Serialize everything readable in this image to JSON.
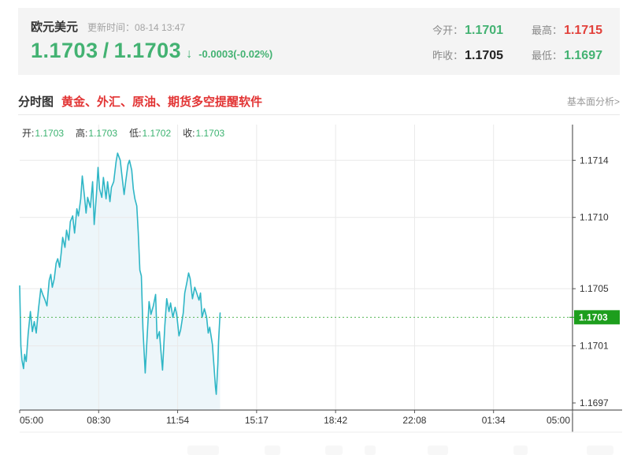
{
  "header": {
    "pair_name": "欧元美元",
    "update_text": "更新时间：08-14 13:47",
    "bid": "1.1703",
    "slash": "/",
    "ask": "1.1703",
    "arrow": "↓",
    "change": "-0.0003(-0.02%)",
    "stats": [
      {
        "label": "今开：",
        "value": "1.1701",
        "color": "green"
      },
      {
        "label": "最高：",
        "value": "1.1715",
        "color": "red"
      },
      {
        "label": "昨收：",
        "value": "1.1705",
        "color": "black"
      },
      {
        "label": "最低：",
        "value": "1.1697",
        "color": "green"
      }
    ]
  },
  "tabs": {
    "active_tab": "分时图",
    "promo_text": "黄金、外汇、原油、期货多空提醒软件",
    "analysis_link": "基本面分析>"
  },
  "ohlc": {
    "open_label": "开:",
    "open": "1.1703",
    "high_label": "高:",
    "high": "1.1703",
    "low_label": "低:",
    "low": "1.1702",
    "close_label": "收:",
    "close": "1.1703"
  },
  "chart_data": {
    "type": "line",
    "instrument": "欧元美元",
    "x_tick_labels": [
      "05:00",
      "08:30",
      "11:54",
      "15:17",
      "18:42",
      "22:08",
      "01:34",
      "05:00"
    ],
    "x_range_minutes": [
      0,
      1440
    ],
    "y_axis_range": [
      1.16965,
      1.17165
    ],
    "y_ticks": [
      {
        "label": "1.1714",
        "value": 1.1714,
        "grid": true
      },
      {
        "label": "1.1710",
        "value": 1.171,
        "grid": true
      },
      {
        "label": "1.1705",
        "value": 1.1705,
        "grid": true
      },
      {
        "label": "1.1701",
        "value": 1.1701,
        "grid": true
      },
      {
        "label": "1.1697",
        "value": 1.1697,
        "grid": false
      }
    ],
    "current_price": 1.1703,
    "current_price_label": "1.1703",
    "colors": {
      "line": "#2fb6c6",
      "fill": "#edf6fa",
      "grid": "#e9e9e9",
      "axis": "#3a3a3a",
      "tick": "#555555",
      "label": "#333333",
      "current_line": "#57b757",
      "current_box": "#1d9e1d",
      "current_text": "#ffffff",
      "bottom_border": "#ececec"
    },
    "series": [
      {
        "name": "price",
        "points": [
          [
            0,
            1.17052
          ],
          [
            3,
            1.1701
          ],
          [
            6,
            1.17
          ],
          [
            10,
            1.16994
          ],
          [
            13,
            1.17004
          ],
          [
            17,
            1.16999
          ],
          [
            22,
            1.17018
          ],
          [
            28,
            1.17034
          ],
          [
            33,
            1.1702
          ],
          [
            38,
            1.17027
          ],
          [
            43,
            1.17019
          ],
          [
            49,
            1.17036
          ],
          [
            55,
            1.1705
          ],
          [
            60,
            1.17046
          ],
          [
            66,
            1.17042
          ],
          [
            71,
            1.17038
          ],
          [
            77,
            1.17056
          ],
          [
            81,
            1.1706
          ],
          [
            85,
            1.17051
          ],
          [
            90,
            1.17057
          ],
          [
            95,
            1.17068
          ],
          [
            99,
            1.17071
          ],
          [
            104,
            1.17065
          ],
          [
            108,
            1.17075
          ],
          [
            112,
            1.17086
          ],
          [
            118,
            1.17079
          ],
          [
            122,
            1.17091
          ],
          [
            128,
            1.17084
          ],
          [
            132,
            1.17097
          ],
          [
            138,
            1.17101
          ],
          [
            143,
            1.17089
          ],
          [
            149,
            1.17106
          ],
          [
            153,
            1.17101
          ],
          [
            159,
            1.17113
          ],
          [
            163,
            1.17129
          ],
          [
            169,
            1.17114
          ],
          [
            173,
            1.17103
          ],
          [
            177,
            1.17114
          ],
          [
            184,
            1.17107
          ],
          [
            190,
            1.17125
          ],
          [
            194,
            1.17095
          ],
          [
            200,
            1.17116
          ],
          [
            204,
            1.17135
          ],
          [
            208,
            1.1712
          ],
          [
            214,
            1.17114
          ],
          [
            218,
            1.17128
          ],
          [
            225,
            1.17113
          ],
          [
            229,
            1.17125
          ],
          [
            235,
            1.17111
          ],
          [
            239,
            1.17121
          ],
          [
            245,
            1.17125
          ],
          [
            251,
            1.17139
          ],
          [
            255,
            1.17145
          ],
          [
            262,
            1.1714
          ],
          [
            266,
            1.1713
          ],
          [
            272,
            1.17116
          ],
          [
            276,
            1.17125
          ],
          [
            282,
            1.17137
          ],
          [
            286,
            1.1714
          ],
          [
            292,
            1.17133
          ],
          [
            296,
            1.1712
          ],
          [
            300,
            1.17113
          ],
          [
            305,
            1.17108
          ],
          [
            309,
            1.17089
          ],
          [
            313,
            1.17063
          ],
          [
            317,
            1.17059
          ],
          [
            321,
            1.17022
          ],
          [
            327,
            1.16991
          ],
          [
            331,
            1.17012
          ],
          [
            337,
            1.17041
          ],
          [
            342,
            1.17032
          ],
          [
            348,
            1.17038
          ],
          [
            354,
            1.17046
          ],
          [
            358,
            1.17015
          ],
          [
            364,
            1.1702
          ],
          [
            368,
            1.17006
          ],
          [
            372,
            1.16993
          ],
          [
            378,
            1.17024
          ],
          [
            383,
            1.17043
          ],
          [
            389,
            1.17034
          ],
          [
            393,
            1.1704
          ],
          [
            399,
            1.1703
          ],
          [
            405,
            1.17037
          ],
          [
            409,
            1.17032
          ],
          [
            415,
            1.17017
          ],
          [
            419,
            1.17021
          ],
          [
            426,
            1.17033
          ],
          [
            430,
            1.17047
          ],
          [
            436,
            1.17055
          ],
          [
            440,
            1.17061
          ],
          [
            444,
            1.17057
          ],
          [
            450,
            1.17043
          ],
          [
            456,
            1.17051
          ],
          [
            460,
            1.17048
          ],
          [
            467,
            1.17042
          ],
          [
            471,
            1.17047
          ],
          [
            475,
            1.1703
          ],
          [
            481,
            1.17036
          ],
          [
            487,
            1.1703
          ],
          [
            491,
            1.17019
          ],
          [
            495,
            1.17023
          ],
          [
            502,
            1.17011
          ],
          [
            506,
            1.16996
          ],
          [
            510,
            1.16981
          ],
          [
            512,
            1.16976
          ],
          [
            516,
            1.16997
          ],
          [
            518,
            1.17013
          ],
          [
            522,
            1.17033
          ]
        ]
      }
    ]
  }
}
